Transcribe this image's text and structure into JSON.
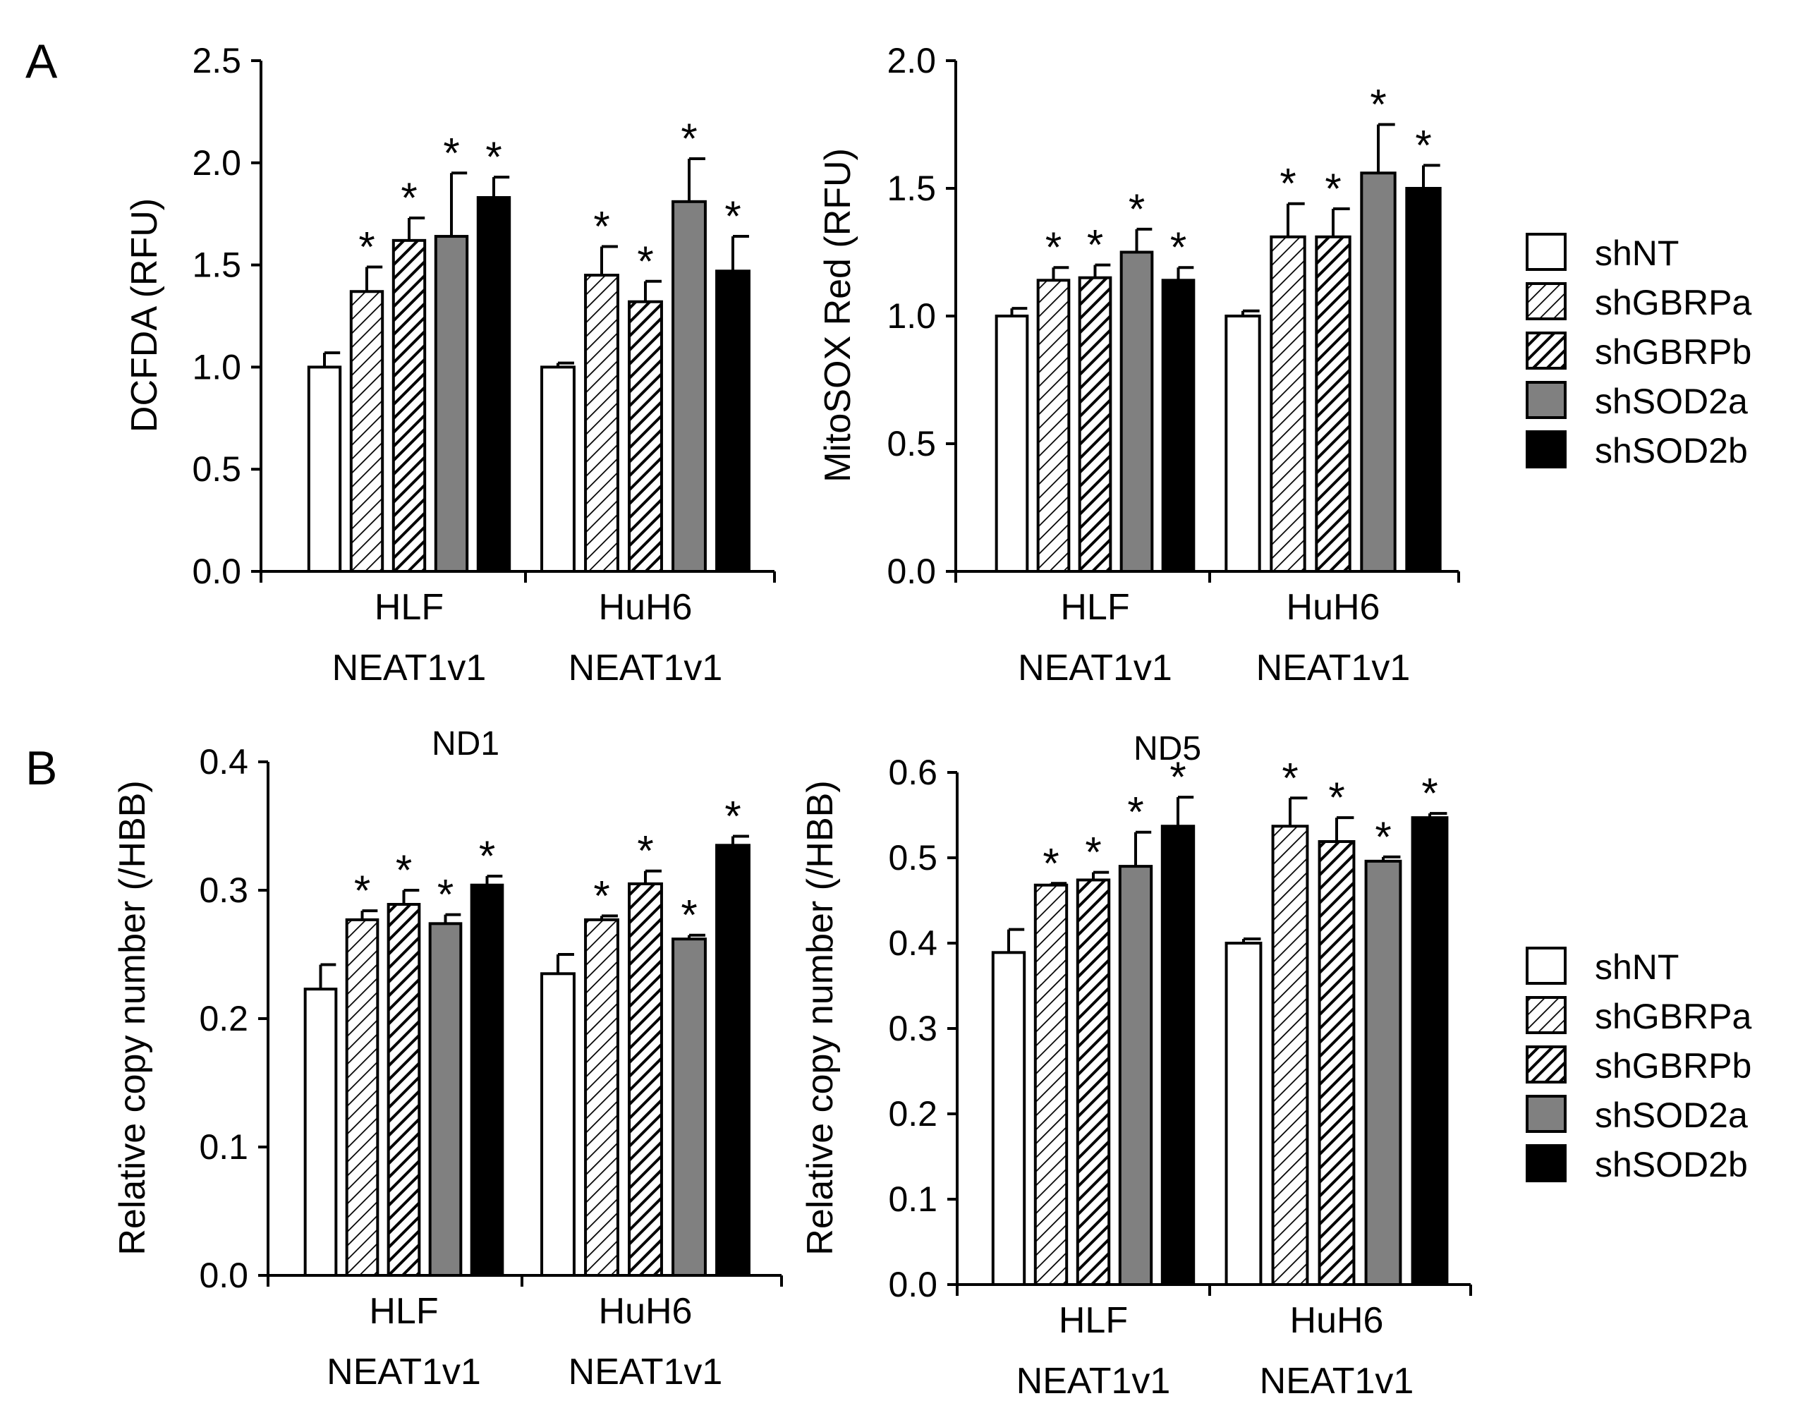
{
  "panel_letters": [
    "A",
    "B"
  ],
  "legend": {
    "entries": [
      {
        "label": "shNT",
        "fill": "white"
      },
      {
        "label": "shGBRPa",
        "fill": "hatch-light"
      },
      {
        "label": "shGBRPb",
        "fill": "hatch-dark"
      },
      {
        "label": "shSOD2a",
        "fill": "#808080"
      },
      {
        "label": "shSOD2b",
        "fill": "#000000"
      }
    ]
  },
  "colors": {
    "gray": "#808080",
    "black": "#000000",
    "white": "#ffffff"
  },
  "chart_data": [
    {
      "type": "bar",
      "title": "",
      "ylabel": "DCFDA (RFU)",
      "xlabel": "",
      "ylim": [
        0,
        2.5
      ],
      "yticks": [
        "0.0",
        "0.5",
        "1.0",
        "1.5",
        "2.0",
        "2.5"
      ],
      "categories": [
        [
          "HLF",
          "NEAT1v1"
        ],
        [
          "HuH6",
          "NEAT1v1"
        ]
      ],
      "series": [
        {
          "name": "shNT",
          "values": [
            1.0,
            1.0
          ],
          "errors": [
            0.07,
            0.02
          ],
          "stars": [
            false,
            false
          ]
        },
        {
          "name": "shGBRPa",
          "values": [
            1.37,
            1.45
          ],
          "errors": [
            0.12,
            0.14
          ],
          "stars": [
            true,
            true
          ]
        },
        {
          "name": "shGBRPb",
          "values": [
            1.62,
            1.32
          ],
          "errors": [
            0.11,
            0.1
          ],
          "stars": [
            true,
            true
          ]
        },
        {
          "name": "shSOD2a",
          "values": [
            1.64,
            1.81
          ],
          "errors": [
            0.31,
            0.21
          ],
          "stars": [
            true,
            true
          ]
        },
        {
          "name": "shSOD2b",
          "values": [
            1.83,
            1.47
          ],
          "errors": [
            0.1,
            0.17
          ],
          "stars": [
            true,
            true
          ]
        }
      ]
    },
    {
      "type": "bar",
      "title": "",
      "ylabel": "MitoSOX Red (RFU)",
      "xlabel": "",
      "ylim": [
        0,
        2.0
      ],
      "yticks": [
        "0.0",
        "0.5",
        "1.0",
        "1.5",
        "2.0"
      ],
      "categories": [
        [
          "HLF",
          "NEAT1v1"
        ],
        [
          "HuH6",
          "NEAT1v1"
        ]
      ],
      "series": [
        {
          "name": "shNT",
          "values": [
            1.0,
            1.0
          ],
          "errors": [
            0.03,
            0.02
          ],
          "stars": [
            false,
            false
          ]
        },
        {
          "name": "shGBRPa",
          "values": [
            1.14,
            1.31
          ],
          "errors": [
            0.05,
            0.13
          ],
          "stars": [
            true,
            true
          ]
        },
        {
          "name": "shGBRPb",
          "values": [
            1.15,
            1.31
          ],
          "errors": [
            0.05,
            0.11
          ],
          "stars": [
            true,
            true
          ]
        },
        {
          "name": "shSOD2a",
          "values": [
            1.25,
            1.56
          ],
          "errors": [
            0.09,
            0.19
          ],
          "stars": [
            true,
            true
          ]
        },
        {
          "name": "shSOD2b",
          "values": [
            1.14,
            1.5
          ],
          "errors": [
            0.05,
            0.09
          ],
          "stars": [
            true,
            true
          ]
        }
      ]
    },
    {
      "type": "bar",
      "title": "ND1",
      "ylabel": "Relative copy number (/HBB)",
      "xlabel": "",
      "ylim": [
        0,
        0.4
      ],
      "yticks": [
        "0.0",
        "0.1",
        "0.2",
        "0.3",
        "0.4"
      ],
      "categories": [
        [
          "HLF",
          "NEAT1v1"
        ],
        [
          "HuH6",
          "NEAT1v1"
        ]
      ],
      "series": [
        {
          "name": "shNT",
          "values": [
            0.223,
            0.235
          ],
          "errors": [
            0.019,
            0.015
          ],
          "stars": [
            false,
            false
          ]
        },
        {
          "name": "shGBRPa",
          "values": [
            0.277,
            0.277
          ],
          "errors": [
            0.007,
            0.003
          ],
          "stars": [
            true,
            true
          ]
        },
        {
          "name": "shGBRPb",
          "values": [
            0.289,
            0.305
          ],
          "errors": [
            0.011,
            0.01
          ],
          "stars": [
            true,
            true
          ]
        },
        {
          "name": "shSOD2a",
          "values": [
            0.274,
            0.262
          ],
          "errors": [
            0.007,
            0.003
          ],
          "stars": [
            true,
            true
          ]
        },
        {
          "name": "shSOD2b",
          "values": [
            0.304,
            0.335
          ],
          "errors": [
            0.007,
            0.007
          ],
          "stars": [
            true,
            true
          ]
        }
      ]
    },
    {
      "type": "bar",
      "title": "ND5",
      "ylabel": "Relative copy number (/HBB)",
      "xlabel": "",
      "ylim": [
        0,
        0.6
      ],
      "yticks": [
        "0.0",
        "0.1",
        "0.2",
        "0.3",
        "0.4",
        "0.5",
        "0.6"
      ],
      "categories": [
        [
          "HLF",
          "NEAT1v1"
        ],
        [
          "HuH6",
          "NEAT1v1"
        ]
      ],
      "series": [
        {
          "name": "shNT",
          "values": [
            0.389,
            0.4
          ],
          "errors": [
            0.027,
            0.005
          ],
          "stars": [
            false,
            false
          ]
        },
        {
          "name": "shGBRPa",
          "values": [
            0.468,
            0.537
          ],
          "errors": [
            0.002,
            0.033
          ],
          "stars": [
            true,
            true
          ]
        },
        {
          "name": "shGBRPb",
          "values": [
            0.474,
            0.519
          ],
          "errors": [
            0.009,
            0.028
          ],
          "stars": [
            true,
            true
          ]
        },
        {
          "name": "shSOD2a",
          "values": [
            0.49,
            0.496
          ],
          "errors": [
            0.04,
            0.005
          ],
          "stars": [
            true,
            true
          ]
        },
        {
          "name": "shSOD2b",
          "values": [
            0.537,
            0.547
          ],
          "errors": [
            0.034,
            0.005
          ],
          "stars": [
            true,
            true
          ]
        }
      ]
    }
  ]
}
